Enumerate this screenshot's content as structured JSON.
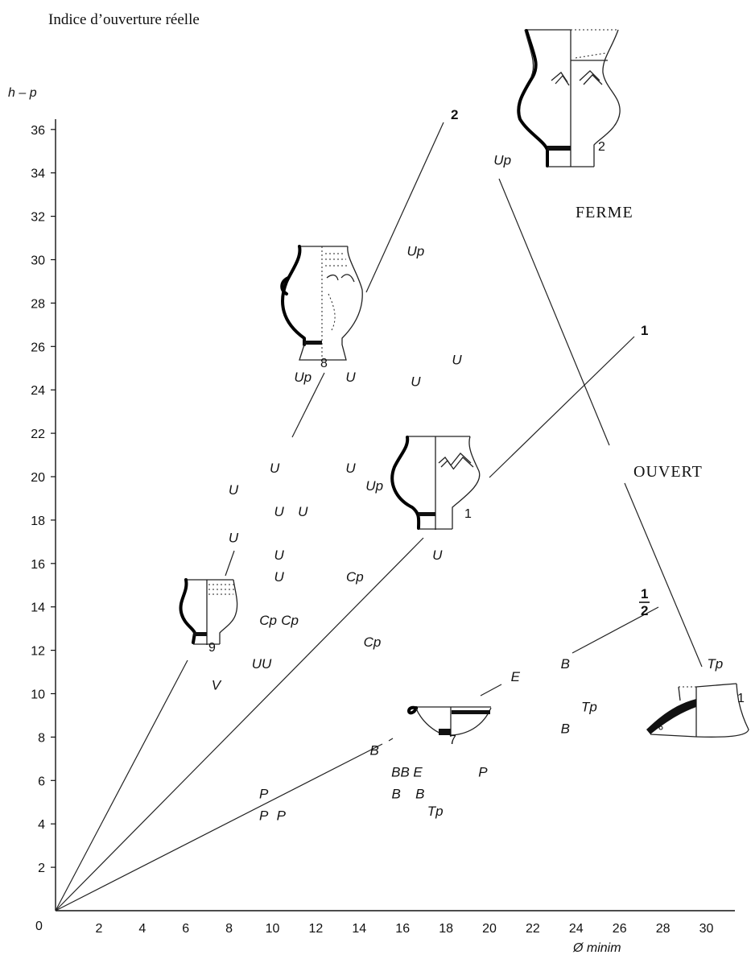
{
  "chart_data": {
    "type": "scatter",
    "title": "Indice d’ouverture réelle",
    "ylabel": "h – p",
    "xlabel": "Ø minim",
    "origin_label": "0",
    "xlim": [
      0,
      31.5
    ],
    "ylim": [
      0,
      37
    ],
    "x_ticks": [
      "2",
      "4",
      "6",
      "8",
      "10",
      "12",
      "14",
      "16",
      "18",
      "20",
      "22",
      "24",
      "26",
      "28",
      "30"
    ],
    "y_ticks": [
      "2",
      "4",
      "6",
      "8",
      "10",
      "12",
      "14",
      "16",
      "18",
      "20",
      "22",
      "24",
      "26",
      "28",
      "30",
      "32",
      "34",
      "36"
    ],
    "grid": false,
    "zones": [
      "FERME",
      "OUVERT"
    ],
    "ratio_lines": [
      {
        "label": "2",
        "slope": 2
      },
      {
        "label": "1",
        "slope": 1
      },
      {
        "label_num": "1",
        "label_den": "2",
        "slope": 0.5
      }
    ],
    "points": [
      {
        "label": "Up",
        "x": 20.6,
        "y": 34.6
      },
      {
        "label": "Up",
        "x": 16.6,
        "y": 30.4
      },
      {
        "label": "U",
        "x": 18.5,
        "y": 25.4
      },
      {
        "label": "Up",
        "x": 11.4,
        "y": 24.6
      },
      {
        "label": "U",
        "x": 13.6,
        "y": 24.6
      },
      {
        "label": "U",
        "x": 16.6,
        "y": 24.4
      },
      {
        "label": "U",
        "x": 10.1,
        "y": 20.4
      },
      {
        "label": "U",
        "x": 13.6,
        "y": 20.4
      },
      {
        "label": "Up",
        "x": 14.7,
        "y": 19.6
      },
      {
        "label": "U",
        "x": 8.2,
        "y": 19.4
      },
      {
        "label": "U",
        "x": 10.3,
        "y": 18.4
      },
      {
        "label": "U",
        "x": 11.4,
        "y": 18.4
      },
      {
        "label": "U",
        "x": 8.2,
        "y": 17.2
      },
      {
        "label": "U",
        "x": 10.3,
        "y": 16.4
      },
      {
        "label": "U",
        "x": 17.6,
        "y": 16.4
      },
      {
        "label": "U",
        "x": 10.3,
        "y": 15.4
      },
      {
        "label": "Cp",
        "x": 13.8,
        "y": 15.4
      },
      {
        "label": "Cp",
        "x": 9.8,
        "y": 13.4
      },
      {
        "label": "Cp",
        "x": 10.8,
        "y": 13.4
      },
      {
        "label": "Cp",
        "x": 14.6,
        "y": 12.4
      },
      {
        "label": "UU",
        "x": 9.5,
        "y": 11.4
      },
      {
        "label": "B",
        "x": 23.5,
        "y": 11.4
      },
      {
        "label": "E",
        "x": 21.2,
        "y": 10.8
      },
      {
        "label": "Tp",
        "x": 30.4,
        "y": 11.4
      },
      {
        "label": "V",
        "x": 7.4,
        "y": 10.4
      },
      {
        "label": "Tp",
        "x": 24.6,
        "y": 9.4
      },
      {
        "label": "B",
        "x": 23.5,
        "y": 8.4
      },
      {
        "label": "B",
        "x": 14.7,
        "y": 7.4
      },
      {
        "label": "BB",
        "x": 15.9,
        "y": 6.4
      },
      {
        "label": "E",
        "x": 16.7,
        "y": 6.4
      },
      {
        "label": "P",
        "x": 19.7,
        "y": 6.4
      },
      {
        "label": "P",
        "x": 9.6,
        "y": 5.4
      },
      {
        "label": "B",
        "x": 15.7,
        "y": 5.4
      },
      {
        "label": "B",
        "x": 16.8,
        "y": 5.4
      },
      {
        "label": "Tp",
        "x": 17.5,
        "y": 4.6
      },
      {
        "label": "P",
        "x": 9.6,
        "y": 4.4
      },
      {
        "label": "P",
        "x": 10.4,
        "y": 4.4
      }
    ],
    "vessel_numbers": [
      "2",
      "8",
      "1",
      "9",
      "7",
      "1"
    ]
  }
}
